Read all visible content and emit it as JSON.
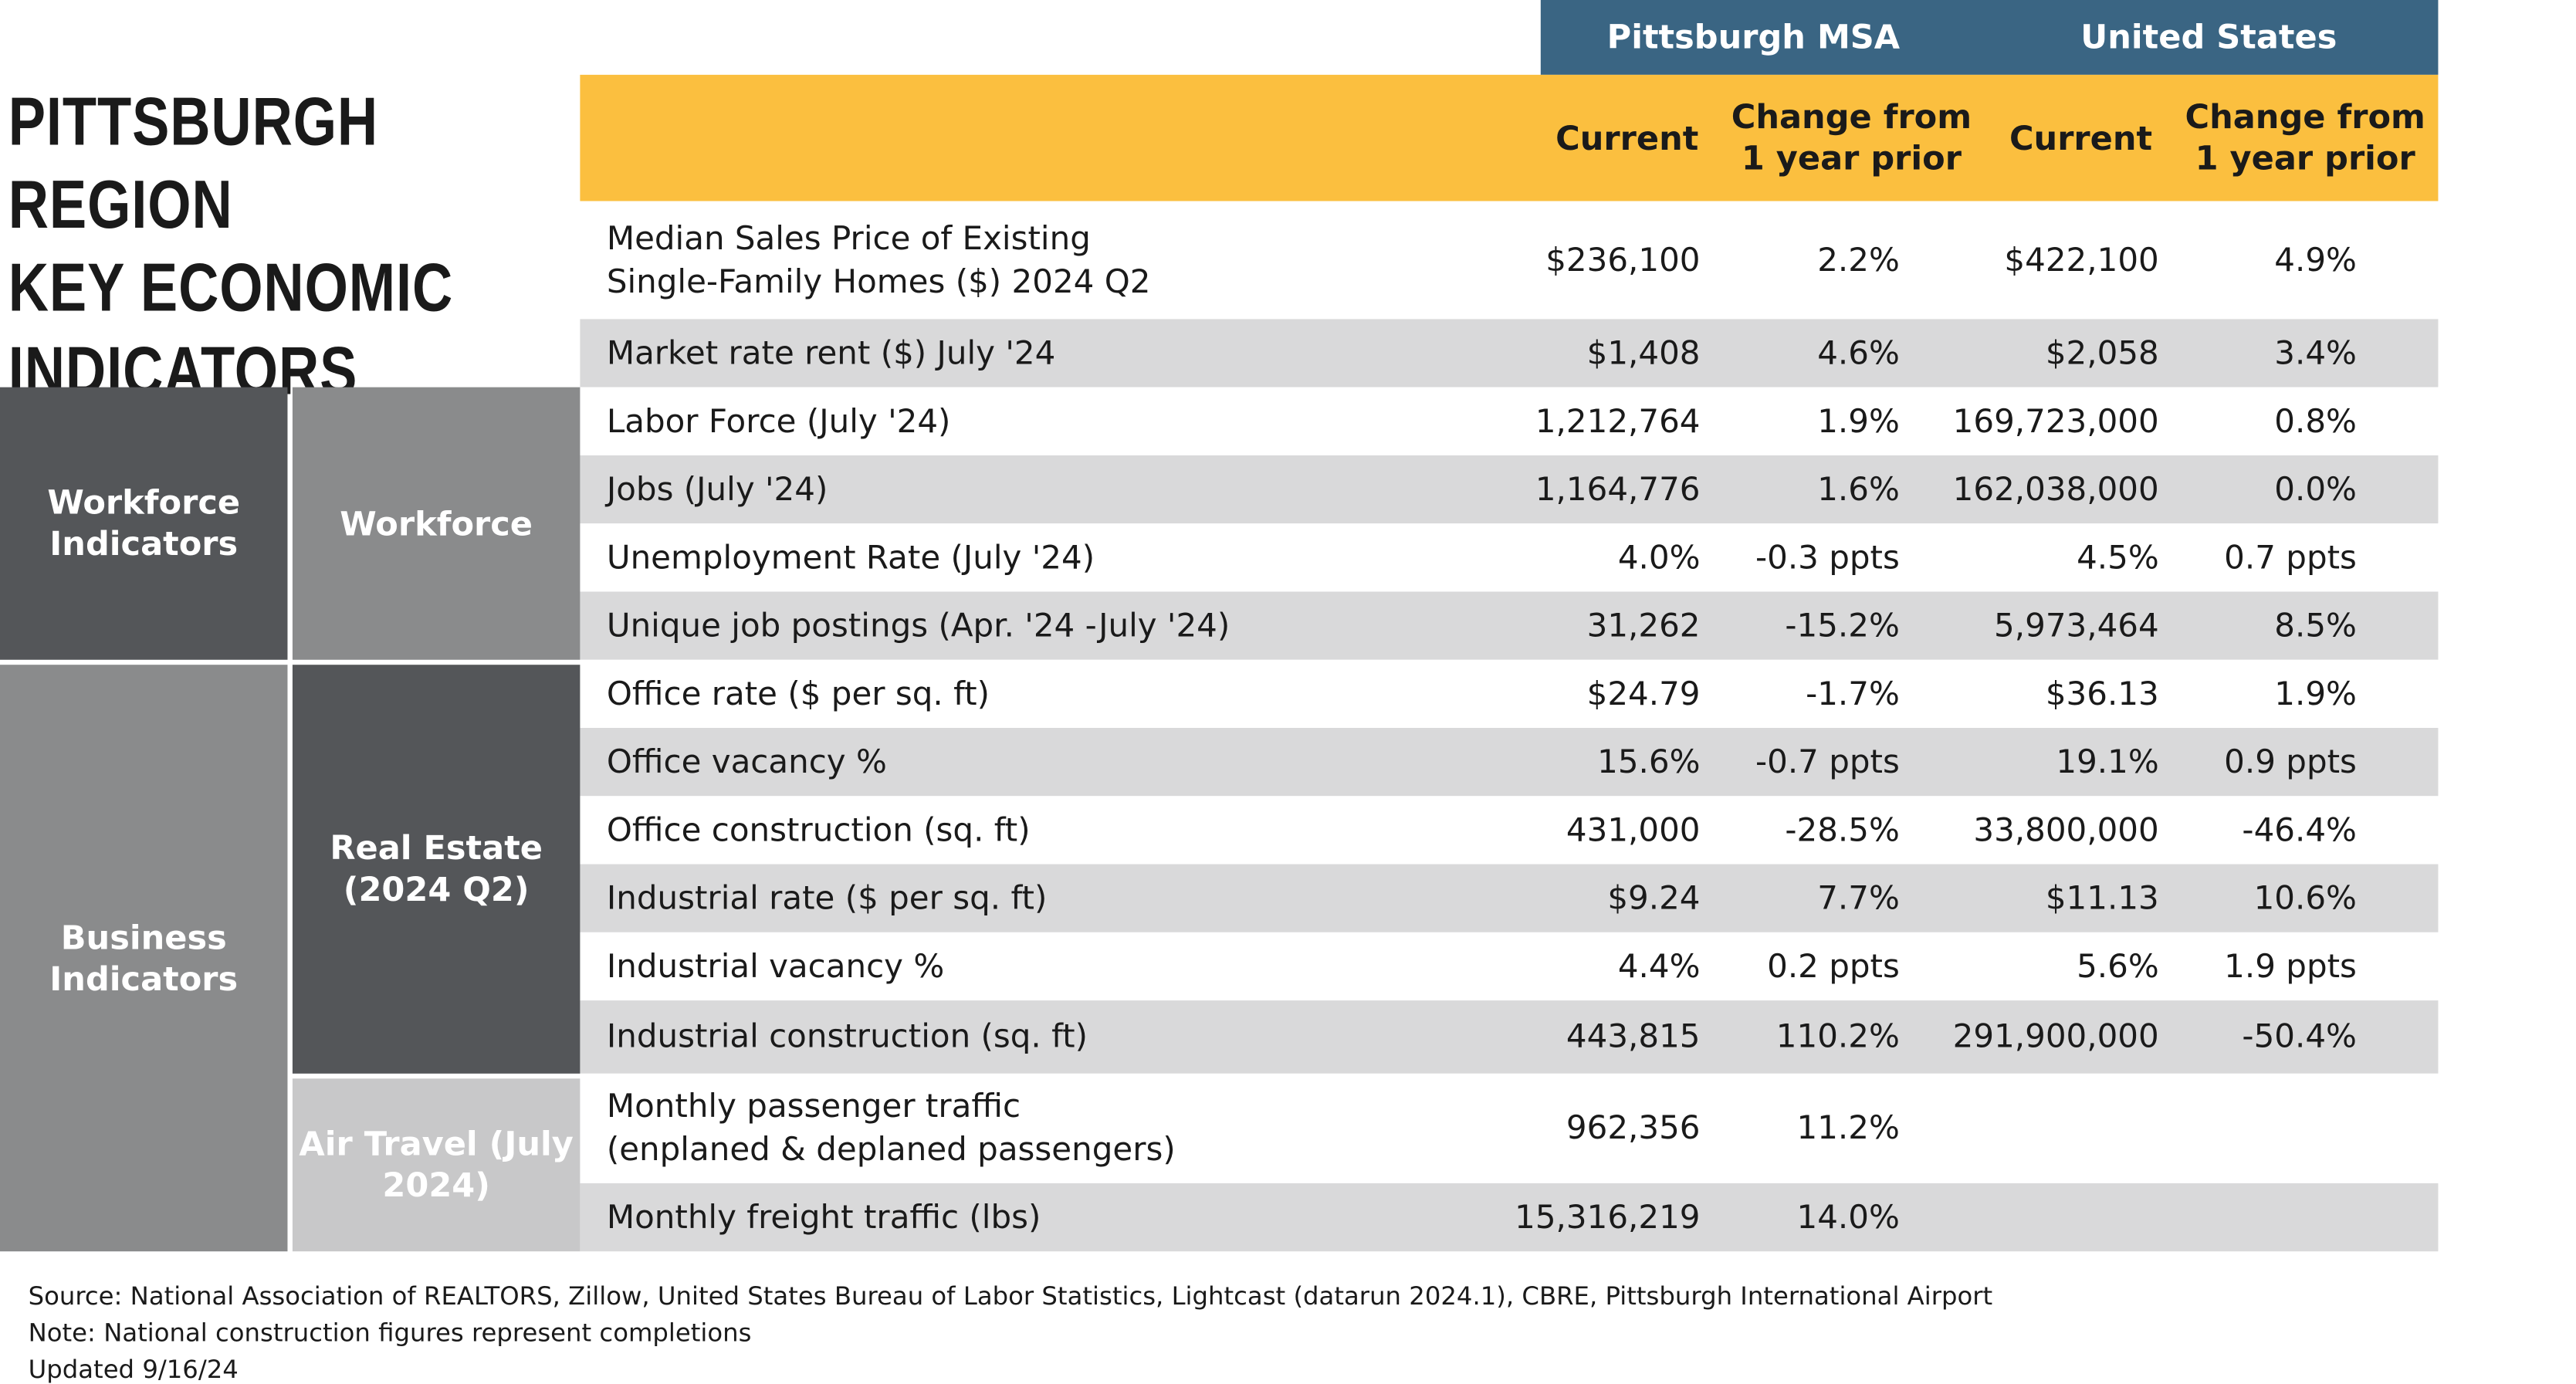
{
  "header": {
    "title": "PITTSBURGH REGION\nKEY ECONOMIC\nINDICATORS",
    "regions": [
      "Pittsburgh MSA",
      "United States"
    ],
    "columns": [
      "Current",
      "Change from\n1 year prior",
      "Current",
      "Change from\n1 year prior"
    ]
  },
  "table": {
    "rows": [
      {
        "label": "Median Sales Price of Existing\nSingle-Family Homes ($) 2024 Q2",
        "values": [
          "$236,100",
          "2.2%",
          "$422,100",
          "4.9%"
        ]
      },
      {
        "label": "Market rate rent ($) July '24",
        "values": [
          "$1,408",
          "4.6%",
          "$2,058",
          "3.4%"
        ]
      },
      {
        "label": "Labor Force (July '24)",
        "values": [
          "1,212,764",
          "1.9%",
          "169,723,000",
          "0.8%"
        ]
      },
      {
        "label": "Jobs (July '24)",
        "values": [
          "1,164,776",
          "1.6%",
          "162,038,000",
          "0.0%"
        ]
      },
      {
        "label": "Unemployment Rate (July '24)",
        "values": [
          "4.0%",
          "-0.3 ppts",
          "4.5%",
          "0.7 ppts"
        ]
      },
      {
        "label": "Unique job postings (Apr. '24 -July '24)",
        "values": [
          "31,262",
          "-15.2%",
          "5,973,464",
          "8.5%"
        ]
      },
      {
        "label": "Office rate ($ per sq. ft)",
        "values": [
          "$24.79",
          "-1.7%",
          "$36.13",
          "1.9%"
        ]
      },
      {
        "label": "Office vacancy %",
        "values": [
          "15.6%",
          "-0.7 ppts",
          "19.1%",
          "0.9 ppts"
        ]
      },
      {
        "label": "Office construction (sq. ft)",
        "values": [
          "431,000",
          "-28.5%",
          "33,800,000",
          "-46.4%"
        ]
      },
      {
        "label": "Industrial rate ($ per sq. ft)",
        "values": [
          "$9.24",
          "7.7%",
          "$11.13",
          "10.6%"
        ]
      },
      {
        "label": "Industrial vacancy %",
        "values": [
          "4.4%",
          "0.2 ppts",
          "5.6%",
          "1.9 ppts"
        ]
      },
      {
        "label": "Industrial construction (sq. ft)",
        "values": [
          "443,815",
          "110.2%",
          "291,900,000",
          "-50.4%"
        ]
      },
      {
        "label": "Monthly passenger traffic\n(enplaned & deplaned passengers)",
        "values": [
          "962,356",
          "11.2%"
        ]
      },
      {
        "label": "Monthly freight traffic (lbs)",
        "values": [
          "15,316,219",
          "14.0%"
        ]
      }
    ],
    "groups": [
      "Workforce\nIndicators",
      "Business\nIndicators"
    ],
    "subgroups": [
      "Workforce",
      "Real Estate\n(2024 Q2)",
      "Air Travel\n(July 2024)"
    ]
  },
  "footer": {
    "notes": [
      "Source: National Association of REALTORS, Zillow, United States Bureau of Labor Statistics, Lightcast (datarun 2024.1), CBRE, Pittsburgh International Airport",
      "Note: National construction figures represent completions",
      "Updated 9/16/24"
    ]
  }
}
